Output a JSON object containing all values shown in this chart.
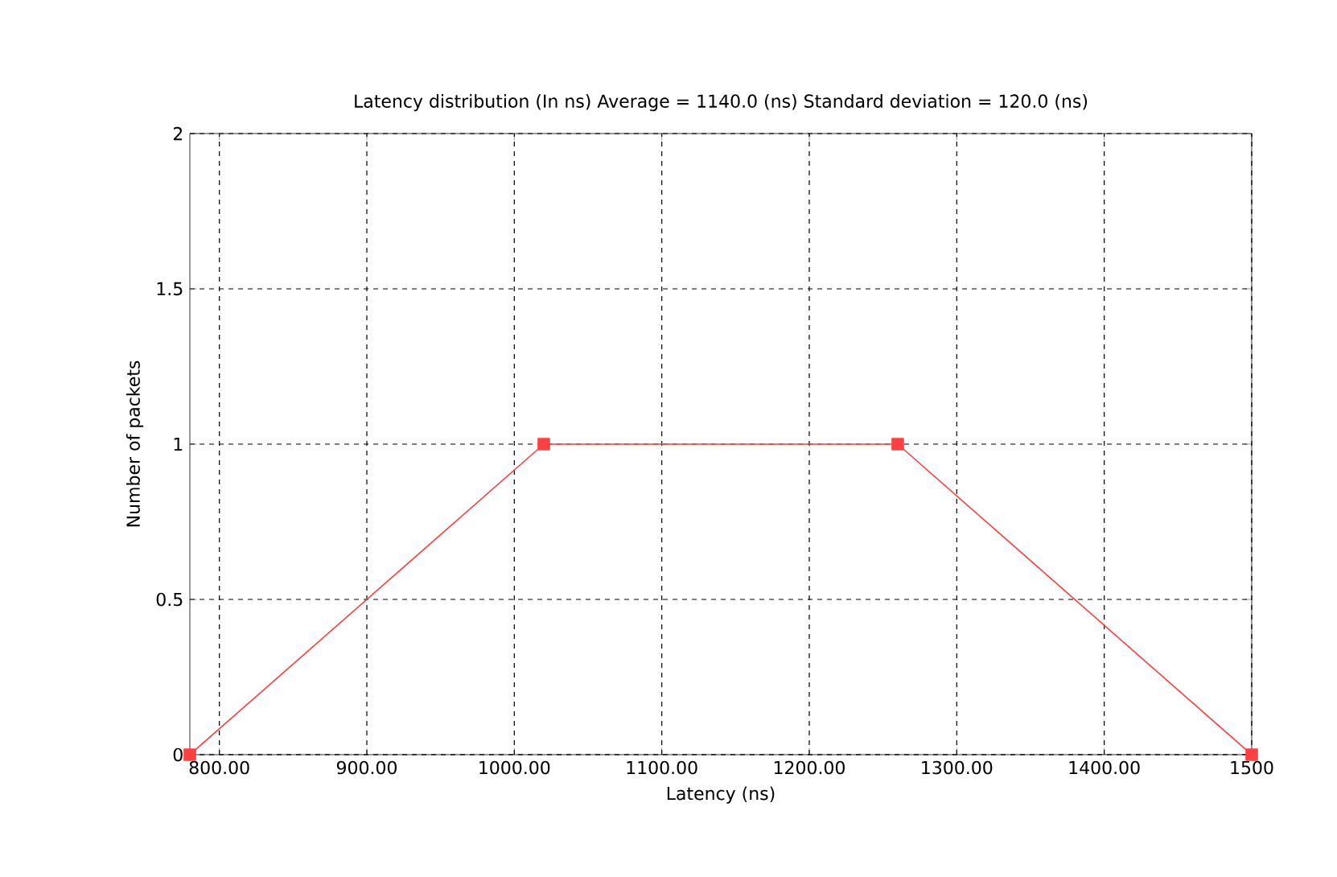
{
  "chart_data": {
    "type": "line",
    "title": "Latency distribution (In ns)   Average = 1140.0 (ns)   Standard deviation = 120.0 (ns)",
    "xlabel": "Latency (ns)",
    "ylabel": "Number of packets",
    "x": [
      780,
      1020,
      1260,
      1500
    ],
    "series": [
      {
        "color": "#ff4040",
        "values": [
          0,
          1,
          1,
          0
        ]
      }
    ],
    "marker": "square",
    "line_style": "solid",
    "grid": true,
    "xlim": [
      780,
      1500
    ],
    "ylim": [
      0,
      2
    ],
    "xticks": [
      {
        "value": 800,
        "label": "800.00"
      },
      {
        "value": 900,
        "label": "900.00"
      },
      {
        "value": 1000,
        "label": "1000.00"
      },
      {
        "value": 1100,
        "label": "1100.00"
      },
      {
        "value": 1200,
        "label": "1200.00"
      },
      {
        "value": 1300,
        "label": "1300.00"
      },
      {
        "value": 1400,
        "label": "1400.00"
      },
      {
        "value": 1500,
        "label": "1500"
      }
    ],
    "yticks": [
      0,
      0.5,
      1,
      1.5,
      2
    ]
  }
}
